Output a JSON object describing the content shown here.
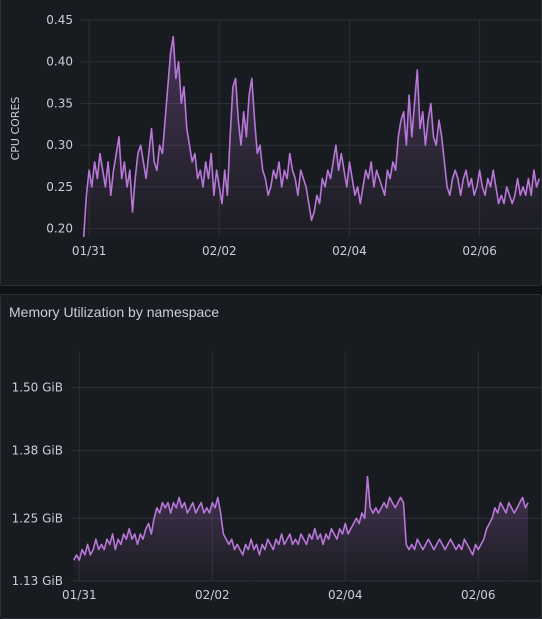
{
  "colors": {
    "background": "#111217",
    "panel": "#181b1f",
    "grid": "#2c2f36",
    "series": "#b877d9"
  },
  "chart_data": [
    {
      "type": "line",
      "title": "",
      "ylabel": "CPU CORES",
      "ylim": [
        0.19,
        0.45
      ],
      "yticks": [
        0.2,
        0.25,
        0.3,
        0.35,
        0.4,
        0.45
      ],
      "ytick_labels": [
        "0.20",
        "0.25",
        "0.30",
        "0.35",
        "0.40",
        "0.45"
      ],
      "xlim": [
        "2024-01-30T21:00",
        "2024-02-06T23:00"
      ],
      "xticks": [
        "2024-01-31T00:00",
        "2024-02-02T00:00",
        "2024-02-04T00:00",
        "2024-02-06T00:00"
      ],
      "xtick_labels": [
        "01/31",
        "02/02",
        "02/04",
        "02/06"
      ],
      "fill_area": true,
      "series": [
        {
          "name": "",
          "x_start": "2024-01-30T22:00",
          "x_step_hours": 1,
          "values": [
            0.19,
            0.24,
            0.27,
            0.25,
            0.28,
            0.26,
            0.29,
            0.27,
            0.25,
            0.28,
            0.24,
            0.27,
            0.29,
            0.31,
            0.26,
            0.28,
            0.25,
            0.27,
            0.22,
            0.26,
            0.29,
            0.3,
            0.28,
            0.26,
            0.29,
            0.32,
            0.28,
            0.27,
            0.3,
            0.29,
            0.33,
            0.37,
            0.41,
            0.43,
            0.38,
            0.4,
            0.35,
            0.37,
            0.32,
            0.3,
            0.28,
            0.29,
            0.26,
            0.27,
            0.25,
            0.28,
            0.26,
            0.29,
            0.24,
            0.27,
            0.25,
            0.23,
            0.27,
            0.24,
            0.31,
            0.37,
            0.38,
            0.33,
            0.3,
            0.34,
            0.31,
            0.36,
            0.38,
            0.33,
            0.29,
            0.3,
            0.27,
            0.26,
            0.24,
            0.25,
            0.27,
            0.26,
            0.28,
            0.25,
            0.27,
            0.26,
            0.29,
            0.27,
            0.26,
            0.24,
            0.27,
            0.26,
            0.25,
            0.23,
            0.21,
            0.22,
            0.24,
            0.23,
            0.26,
            0.25,
            0.27,
            0.26,
            0.28,
            0.3,
            0.27,
            0.29,
            0.27,
            0.25,
            0.28,
            0.26,
            0.24,
            0.25,
            0.23,
            0.25,
            0.27,
            0.26,
            0.28,
            0.25,
            0.27,
            0.26,
            0.25,
            0.24,
            0.27,
            0.26,
            0.28,
            0.27,
            0.31,
            0.33,
            0.34,
            0.3,
            0.36,
            0.31,
            0.35,
            0.39,
            0.32,
            0.34,
            0.3,
            0.33,
            0.35,
            0.31,
            0.3,
            0.33,
            0.31,
            0.28,
            0.25,
            0.24,
            0.26,
            0.27,
            0.26,
            0.24,
            0.26,
            0.27,
            0.25,
            0.26,
            0.24,
            0.25,
            0.27,
            0.25,
            0.24,
            0.26,
            0.25,
            0.27,
            0.25,
            0.23,
            0.24,
            0.23,
            0.25,
            0.24,
            0.23,
            0.24,
            0.26,
            0.24,
            0.25,
            0.24,
            0.26,
            0.24,
            0.27,
            0.25,
            0.26
          ]
        }
      ]
    },
    {
      "type": "line",
      "title": "Memory Utilization by namespace",
      "ylabel": "",
      "ylim": [
        1.13,
        1.57
      ],
      "yticks": [
        1.13,
        1.25,
        1.38,
        1.5
      ],
      "ytick_labels": [
        "1.13 GiB",
        "1.25 GiB",
        "1.38 GiB",
        "1.50 GiB"
      ],
      "xlim": [
        "2024-01-30T21:00",
        "2024-02-06T23:00"
      ],
      "xticks": [
        "2024-01-31T00:00",
        "2024-02-02T00:00",
        "2024-02-04T00:00",
        "2024-02-06T00:00"
      ],
      "xtick_labels": [
        "01/31",
        "02/02",
        "02/04",
        "02/06"
      ],
      "fill_area": true,
      "series": [
        {
          "name": "",
          "x_start": "2024-01-30T22:00",
          "x_step_hours": 1,
          "values": [
            1.17,
            1.18,
            1.17,
            1.19,
            1.18,
            1.2,
            1.18,
            1.19,
            1.21,
            1.19,
            1.2,
            1.19,
            1.21,
            1.2,
            1.22,
            1.19,
            1.21,
            1.2,
            1.22,
            1.21,
            1.23,
            1.21,
            1.22,
            1.2,
            1.22,
            1.21,
            1.23,
            1.24,
            1.22,
            1.25,
            1.27,
            1.26,
            1.28,
            1.27,
            1.28,
            1.26,
            1.28,
            1.27,
            1.29,
            1.27,
            1.28,
            1.26,
            1.27,
            1.28,
            1.26,
            1.27,
            1.28,
            1.26,
            1.27,
            1.26,
            1.28,
            1.27,
            1.29,
            1.26,
            1.22,
            1.21,
            1.2,
            1.21,
            1.19,
            1.2,
            1.19,
            1.18,
            1.2,
            1.19,
            1.21,
            1.19,
            1.2,
            1.18,
            1.2,
            1.19,
            1.21,
            1.2,
            1.19,
            1.21,
            1.2,
            1.22,
            1.2,
            1.21,
            1.22,
            1.2,
            1.21,
            1.2,
            1.22,
            1.21,
            1.2,
            1.22,
            1.21,
            1.23,
            1.21,
            1.22,
            1.2,
            1.22,
            1.21,
            1.23,
            1.22,
            1.21,
            1.23,
            1.22,
            1.24,
            1.22,
            1.23,
            1.24,
            1.25,
            1.24,
            1.26,
            1.25,
            1.33,
            1.27,
            1.26,
            1.27,
            1.26,
            1.27,
            1.28,
            1.27,
            1.29,
            1.28,
            1.27,
            1.28,
            1.29,
            1.28,
            1.2,
            1.19,
            1.2,
            1.19,
            1.21,
            1.2,
            1.19,
            1.2,
            1.21,
            1.2,
            1.19,
            1.2,
            1.21,
            1.2,
            1.19,
            1.2,
            1.21,
            1.2,
            1.19,
            1.2,
            1.19,
            1.21,
            1.2,
            1.19,
            1.18,
            1.2,
            1.19,
            1.2,
            1.21,
            1.23,
            1.24,
            1.25,
            1.27,
            1.26,
            1.28,
            1.27,
            1.26,
            1.28,
            1.27,
            1.26,
            1.27,
            1.28,
            1.29,
            1.27,
            1.28
          ]
        }
      ]
    }
  ]
}
